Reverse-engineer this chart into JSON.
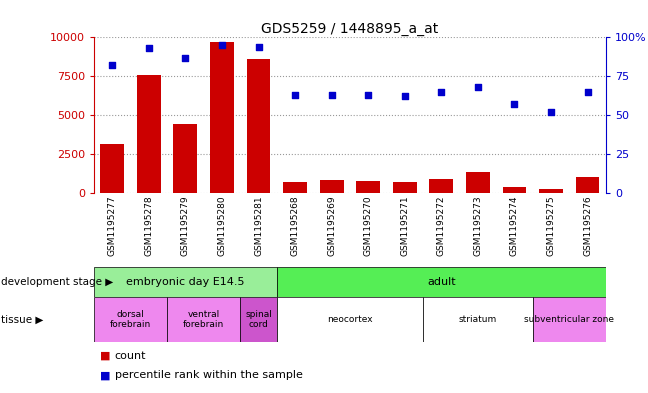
{
  "title": "GDS5259 / 1448895_a_at",
  "samples": [
    "GSM1195277",
    "GSM1195278",
    "GSM1195279",
    "GSM1195280",
    "GSM1195281",
    "GSM1195268",
    "GSM1195269",
    "GSM1195270",
    "GSM1195271",
    "GSM1195272",
    "GSM1195273",
    "GSM1195274",
    "GSM1195275",
    "GSM1195276"
  ],
  "counts": [
    3100,
    7600,
    4400,
    9700,
    8600,
    700,
    800,
    750,
    650,
    900,
    1300,
    350,
    200,
    1000
  ],
  "percentiles": [
    82,
    93,
    87,
    95,
    94,
    63,
    63,
    63,
    62,
    65,
    68,
    57,
    52,
    65
  ],
  "bar_color": "#cc0000",
  "dot_color": "#0000cc",
  "ylim_left": [
    0,
    10000
  ],
  "ylim_right": [
    0,
    100
  ],
  "yticks_left": [
    0,
    2500,
    5000,
    7500,
    10000
  ],
  "yticks_right": [
    0,
    25,
    50,
    75,
    100
  ],
  "dev_stage_color_embryonic": "#99ee99",
  "dev_stage_color_adult": "#55ee55",
  "tissue_groups": [
    {
      "label": "dorsal\nforebrain",
      "start": 0,
      "end": 1,
      "color": "#ee88ee"
    },
    {
      "label": "ventral\nforebrain",
      "start": 2,
      "end": 3,
      "color": "#ee88ee"
    },
    {
      "label": "spinal\ncord",
      "start": 4,
      "end": 4,
      "color": "#cc55cc"
    },
    {
      "label": "neocortex",
      "start": 5,
      "end": 8,
      "color": "#ffffff"
    },
    {
      "label": "striatum",
      "start": 9,
      "end": 11,
      "color": "#ffffff"
    },
    {
      "label": "subventricular zone",
      "start": 12,
      "end": 13,
      "color": "#ee88ee"
    }
  ],
  "bg_color": "#ffffff",
  "plot_bg_color": "#ffffff",
  "tick_area_color": "#cccccc",
  "left_label_color": "#cc0000",
  "right_label_color": "#0000cc",
  "grid_linestyle": ":",
  "grid_color": "#000000",
  "grid_alpha": 0.4,
  "embryonic_count": 5,
  "adult_count": 9,
  "embryonic_label": "embryonic day E14.5",
  "adult_label": "adult",
  "dev_stage_label": "development stage",
  "tissue_label": "tissue",
  "legend_count_label": "count",
  "legend_pct_label": "percentile rank within the sample"
}
